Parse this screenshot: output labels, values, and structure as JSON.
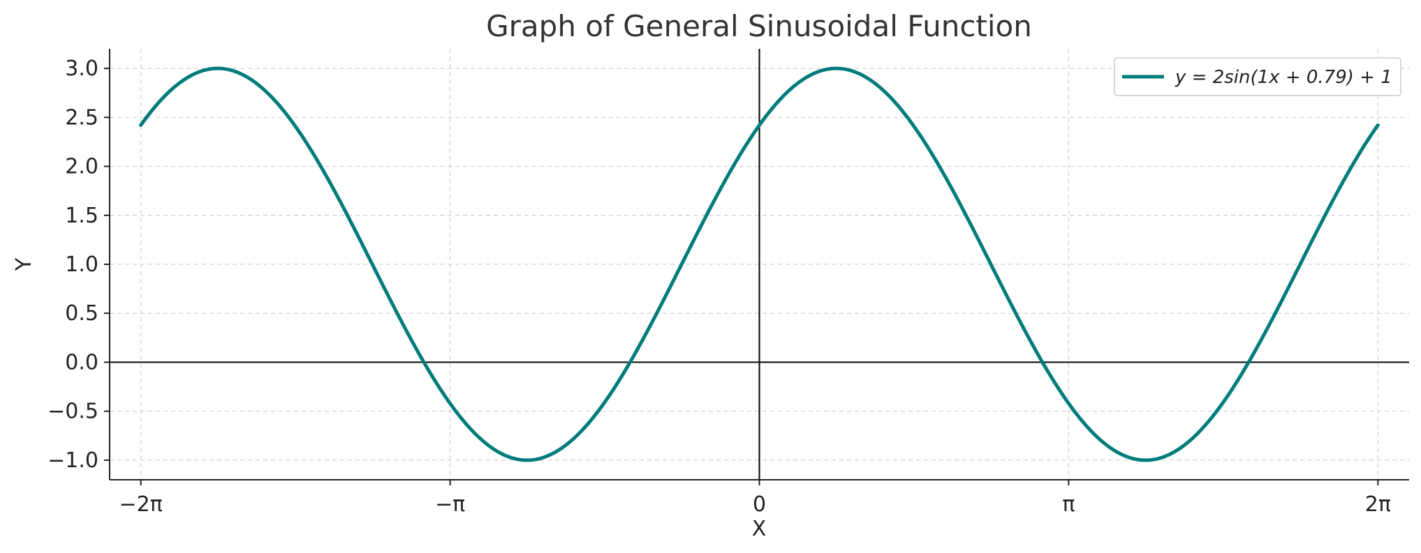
{
  "chart_data": {
    "type": "line",
    "title": "Graph of General Sinusoidal Function",
    "xlabel": "X",
    "ylabel": "Y",
    "xlim": [
      -6.6,
      6.6
    ],
    "ylim": [
      -1.2,
      3.2
    ],
    "grid": true,
    "legend_position": "top-right",
    "x_ticks": [
      {
        "value": -6.283185307,
        "label": "−2π"
      },
      {
        "value": -3.141592654,
        "label": "−π"
      },
      {
        "value": 0,
        "label": "0"
      },
      {
        "value": 3.141592654,
        "label": "π"
      },
      {
        "value": 6.283185307,
        "label": "2π"
      }
    ],
    "y_ticks": [
      {
        "value": 3.0,
        "label": "3.0"
      },
      {
        "value": 2.5,
        "label": "2.5"
      },
      {
        "value": 2.0,
        "label": "2.0"
      },
      {
        "value": 1.5,
        "label": "1.5"
      },
      {
        "value": 1.0,
        "label": "1.0"
      },
      {
        "value": 0.5,
        "label": "0.5"
      },
      {
        "value": 0.0,
        "label": "0.0"
      },
      {
        "value": -0.5,
        "label": "−0.5"
      },
      {
        "value": -1.0,
        "label": "−1.0"
      }
    ],
    "series": [
      {
        "name": "y = 2sin(1x + 0.79) + 1",
        "color": "#007b7b",
        "function": {
          "amplitude": 2,
          "frequency": 1,
          "phase": 0.79,
          "offset": 1
        },
        "x_range": [
          -6.283185307,
          6.283185307
        ]
      }
    ]
  }
}
